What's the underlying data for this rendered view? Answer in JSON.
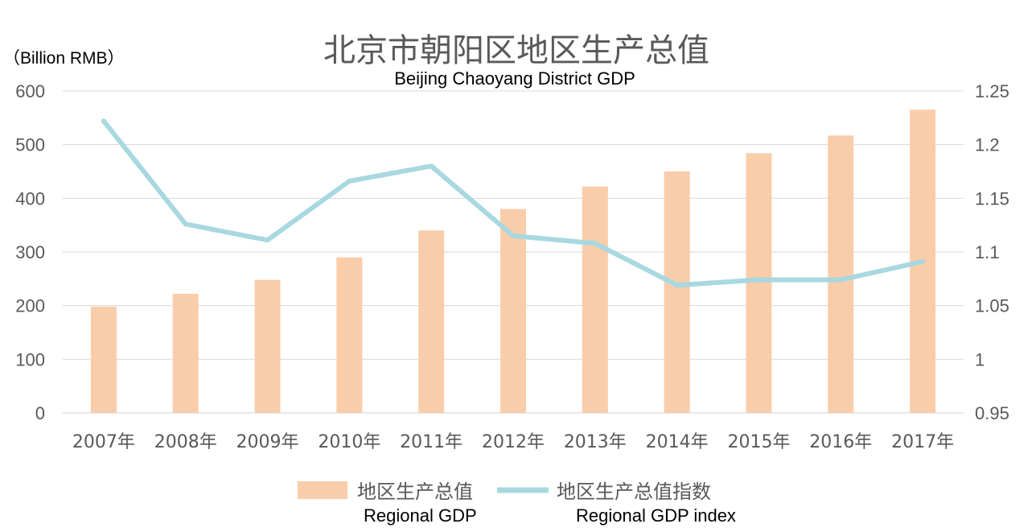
{
  "chart_data": {
    "type": "bar",
    "title": "北京市朝阳区地区生产总值",
    "subtitle": "Beijing Chaoyang District GDP",
    "y_unit": "（Billion RMB）",
    "categories": [
      "2007年",
      "2008年",
      "2009年",
      "2010年",
      "2011年",
      "2012年",
      "2013年",
      "2014年",
      "2015年",
      "2016年",
      "2017年"
    ],
    "ylim": [
      0,
      600
    ],
    "yticks": [
      "0",
      "100",
      "200",
      "300",
      "400",
      "500",
      "600"
    ],
    "y2lim": [
      0.95,
      1.25
    ],
    "y2ticks": [
      "0.95",
      "1",
      "1.05",
      "1.1",
      "1.15",
      "1.2",
      "1.25"
    ],
    "grid": true,
    "legend_position": "bottom",
    "series": [
      {
        "name": "地区生产总值",
        "name_en": "Regional GDP",
        "type": "bar",
        "axis": "left",
        "color": "#F9CDAA",
        "values": [
          198,
          222,
          248,
          290,
          340,
          380,
          422,
          450,
          484,
          517,
          565
        ]
      },
      {
        "name": "地区生产总值指数",
        "name_en": "Regional GDP index",
        "type": "line",
        "axis": "right",
        "color": "#A8D8E0",
        "values": [
          1.222,
          1.126,
          1.111,
          1.166,
          1.18,
          1.115,
          1.108,
          1.069,
          1.074,
          1.074,
          1.091
        ]
      }
    ]
  }
}
